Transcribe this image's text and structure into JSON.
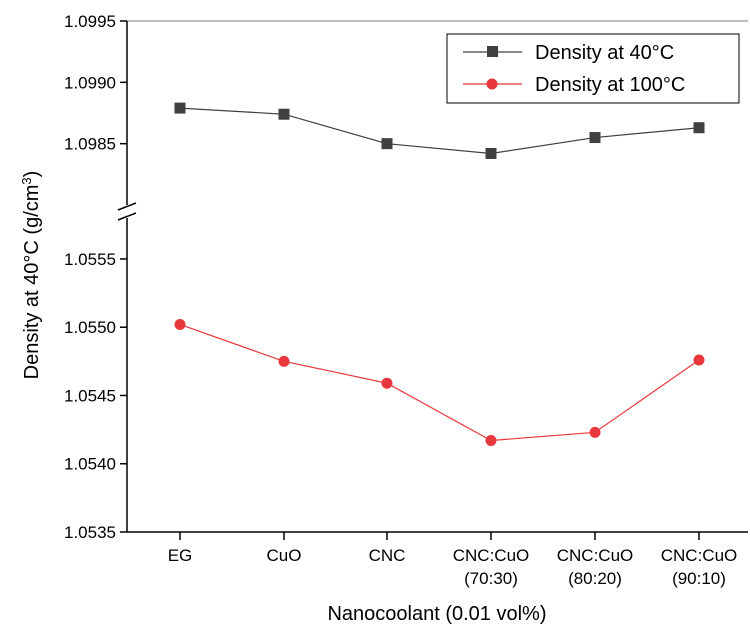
{
  "chart_data": {
    "type": "line",
    "categories": [
      [
        "EG"
      ],
      [
        "CuO"
      ],
      [
        "CNC"
      ],
      [
        "CNC:CuO",
        "(70:30)"
      ],
      [
        "CNC:CuO",
        "(80:20)"
      ],
      [
        "CNC:CuO",
        "(90:10)"
      ]
    ],
    "xlabel": "Nanocoolant (0.01 vol%)",
    "ylabel": "Density at 40°C (g/cm³)",
    "ylabel_main": "Density at 40°C (g/cm",
    "ylabel_sup": "3",
    "ylabel_end": ")",
    "axis_break": true,
    "y_upper": {
      "ylim": [
        1.098,
        1.0995
      ],
      "ticks": [
        "1.0985",
        "1.0990",
        "1.0995"
      ]
    },
    "y_lower": {
      "ylim": [
        1.0535,
        1.0558
      ],
      "ticks": [
        "1.0535",
        "1.0540",
        "1.0545",
        "1.0550",
        "1.0555"
      ]
    },
    "series": [
      {
        "name": "Density at 40°C",
        "color": "#404040",
        "marker": "square",
        "values": [
          1.09879,
          1.09874,
          1.0985,
          1.09842,
          1.09855,
          1.09863
        ]
      },
      {
        "name": "Density at 100°C",
        "color": "#e8383d",
        "marker": "circle",
        "values": [
          1.05502,
          1.05475,
          1.05459,
          1.05417,
          1.05423,
          1.05476
        ]
      }
    ],
    "legend_position": "top-right",
    "grid": false
  }
}
